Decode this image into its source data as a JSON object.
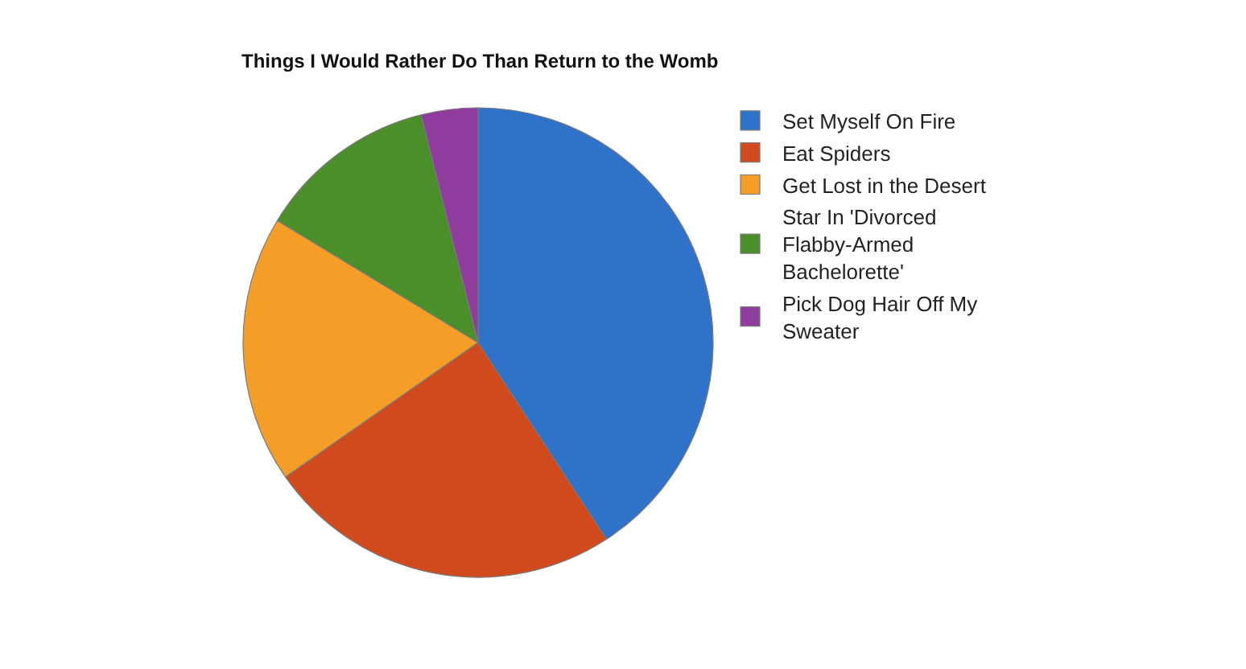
{
  "chart_data": {
    "type": "pie",
    "title": "Things I Would Rather Do Than Return to the Womb",
    "categories": [
      "Set Myself On Fire",
      "Eat Spiders",
      "Get Lost in the Desert",
      "Star In 'Divorced Flabby-Armed Bachelorette'",
      "Pick Dog Hair Off My Sweater"
    ],
    "values": [
      40.8,
      24.5,
      18.4,
      12.4,
      3.9
    ],
    "colors": [
      "#2f72c9",
      "#d04a1e",
      "#f49d27",
      "#4a8f2a",
      "#8f3c9e"
    ],
    "legend": "right"
  }
}
